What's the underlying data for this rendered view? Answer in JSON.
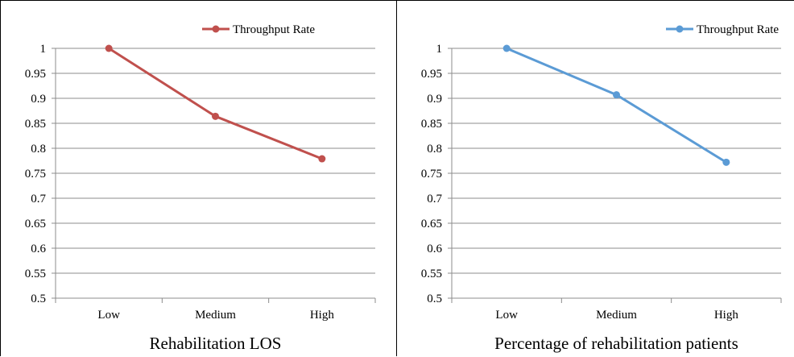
{
  "chart_data": [
    {
      "type": "line",
      "categories": [
        "Low",
        "Medium",
        "High"
      ],
      "series": [
        {
          "name": "Throughput Rate",
          "values": [
            1.0,
            0.864,
            0.779
          ],
          "color": "#c0504d"
        }
      ],
      "xlabel": "Rehabilitation LOS",
      "ylabel": "",
      "ylim": [
        0.5,
        1.0
      ],
      "yticks": [
        "0.5",
        "0.55",
        "0.6",
        "0.65",
        "0.7",
        "0.75",
        "0.8",
        "0.85",
        "0.9",
        "0.95",
        "1"
      ],
      "grid": true,
      "legend": "top-right"
    },
    {
      "type": "line",
      "categories": [
        "Low",
        "Medium",
        "High"
      ],
      "series": [
        {
          "name": "Throughput Rate",
          "values": [
            1.0,
            0.907,
            0.772
          ],
          "color": "#5b9bd5"
        }
      ],
      "xlabel": "Percentage of rehabilitation patients",
      "ylabel": "",
      "ylim": [
        0.5,
        1.0
      ],
      "yticks": [
        "0.5",
        "0.55",
        "0.6",
        "0.65",
        "0.7",
        "0.75",
        "0.8",
        "0.85",
        "0.9",
        "0.95",
        "1"
      ],
      "grid": true,
      "legend": "top-right"
    }
  ]
}
